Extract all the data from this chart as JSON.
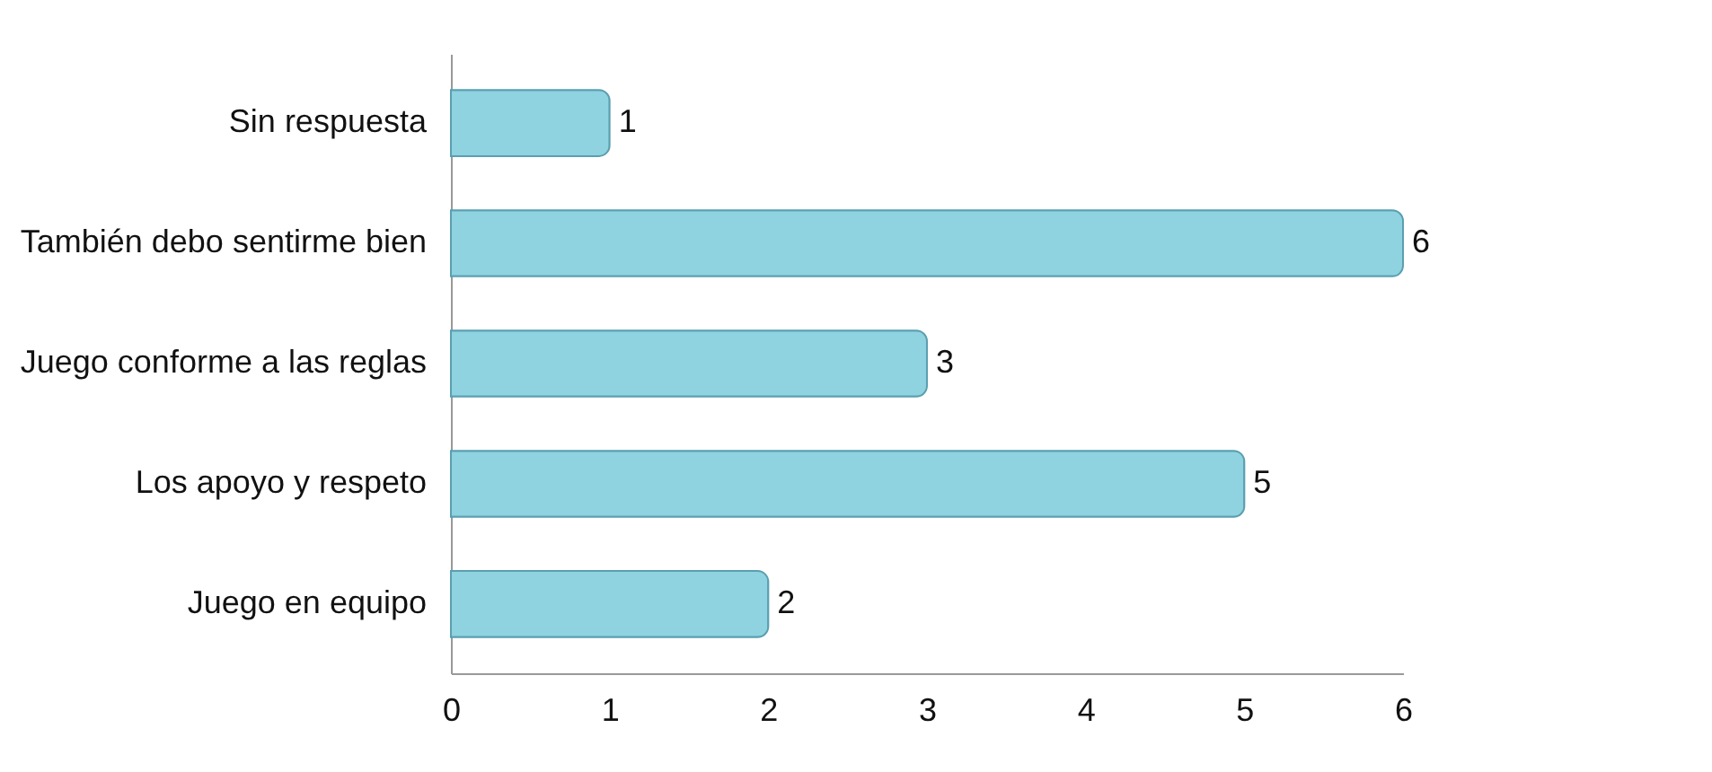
{
  "chart_data": {
    "type": "bar",
    "orientation": "horizontal",
    "categories": [
      "Sin respuesta",
      "También debo sentirme bien",
      "Juego conforme a las reglas",
      "Los apoyo y respeto",
      "Juego en equipo"
    ],
    "values": [
      1,
      6,
      3,
      5,
      2
    ],
    "color": "#8fd3e0",
    "xlim": [
      0,
      6
    ],
    "xticks": [
      0,
      1,
      2,
      3,
      4,
      5,
      6
    ],
    "grid": false,
    "data_labels": true
  }
}
